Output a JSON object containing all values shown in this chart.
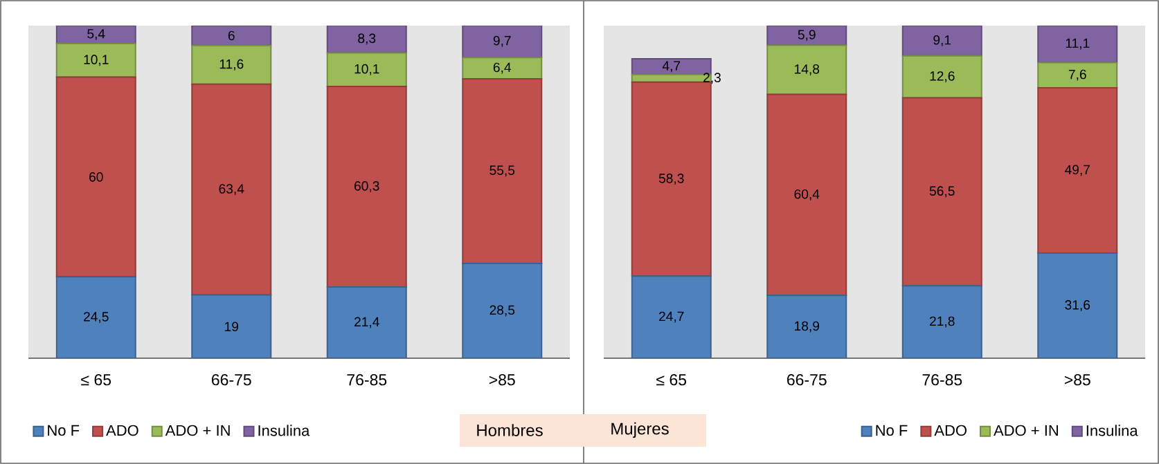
{
  "chart_data": [
    {
      "type": "bar",
      "title": "Hombres",
      "stacked": true,
      "legend": "bottom",
      "tick_labels": "x",
      "ylim": [
        0,
        100
      ],
      "categories": [
        "≤ 65",
        "66-75",
        "76-85",
        ">85"
      ],
      "series": [
        {
          "name": "No F",
          "color": "#4f81bd",
          "values": [
            24.5,
            19,
            21.4,
            28.5
          ],
          "value_labels": [
            "24,5",
            "19",
            "21,4",
            "28,5"
          ]
        },
        {
          "name": "ADO",
          "color": "#c0504d",
          "values": [
            60,
            63.4,
            60.3,
            55.5
          ],
          "value_labels": [
            "60",
            "63,4",
            "60,3",
            "55,5"
          ]
        },
        {
          "name": "ADO + IN",
          "color": "#9bbb59",
          "values": [
            10.1,
            11.6,
            10.1,
            6.4
          ],
          "value_labels": [
            "10,1",
            "11,6",
            "10,1",
            "6,4"
          ]
        },
        {
          "name": "Insulina",
          "color": "#8064a2",
          "values": [
            5.4,
            6,
            8.3,
            9.7
          ],
          "value_labels": [
            "5,4",
            "6",
            "8,3",
            "9,7"
          ]
        }
      ]
    },
    {
      "type": "bar",
      "title": "Mujeres",
      "stacked": true,
      "legend": "bottom",
      "tick_labels": "x",
      "ylim": [
        0,
        100
      ],
      "categories": [
        "≤ 65",
        "66-75",
        "76-85",
        ">85"
      ],
      "series": [
        {
          "name": "No F",
          "color": "#4f81bd",
          "values": [
            24.7,
            18.9,
            21.8,
            31.6
          ],
          "value_labels": [
            "24,7",
            "18,9",
            "21,8",
            "31,6"
          ]
        },
        {
          "name": "ADO",
          "color": "#c0504d",
          "values": [
            58.3,
            60.4,
            56.5,
            49.7
          ],
          "value_labels": [
            "58,3",
            "60,4",
            "56,5",
            "49,7"
          ]
        },
        {
          "name": "ADO + IN",
          "color": "#9bbb59",
          "values": [
            2.3,
            14.8,
            12.6,
            7.6
          ],
          "value_labels": [
            "2,3",
            "14,8",
            "12,6",
            "7,6"
          ]
        },
        {
          "name": "Insulina",
          "color": "#8064a2",
          "values": [
            4.7,
            5.9,
            9.1,
            11.1
          ],
          "value_labels": [
            "4,7",
            "5,9",
            "9,1",
            "11,1"
          ]
        }
      ]
    }
  ]
}
